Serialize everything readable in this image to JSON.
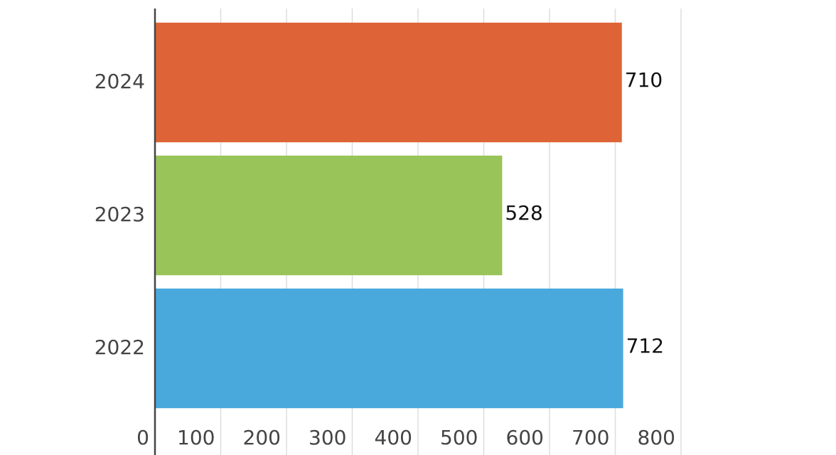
{
  "chart_data": {
    "type": "bar",
    "orientation": "horizontal",
    "categories": [
      "2022",
      "2023",
      "2024"
    ],
    "values": [
      712,
      528,
      710
    ],
    "colors": [
      "#4aa9dc",
      "#99c459",
      "#de6437"
    ],
    "xlim": [
      0,
      800
    ],
    "xticks": [
      0,
      100,
      200,
      300,
      400,
      500,
      600,
      700,
      800
    ],
    "grid": true,
    "data_labels": true
  }
}
